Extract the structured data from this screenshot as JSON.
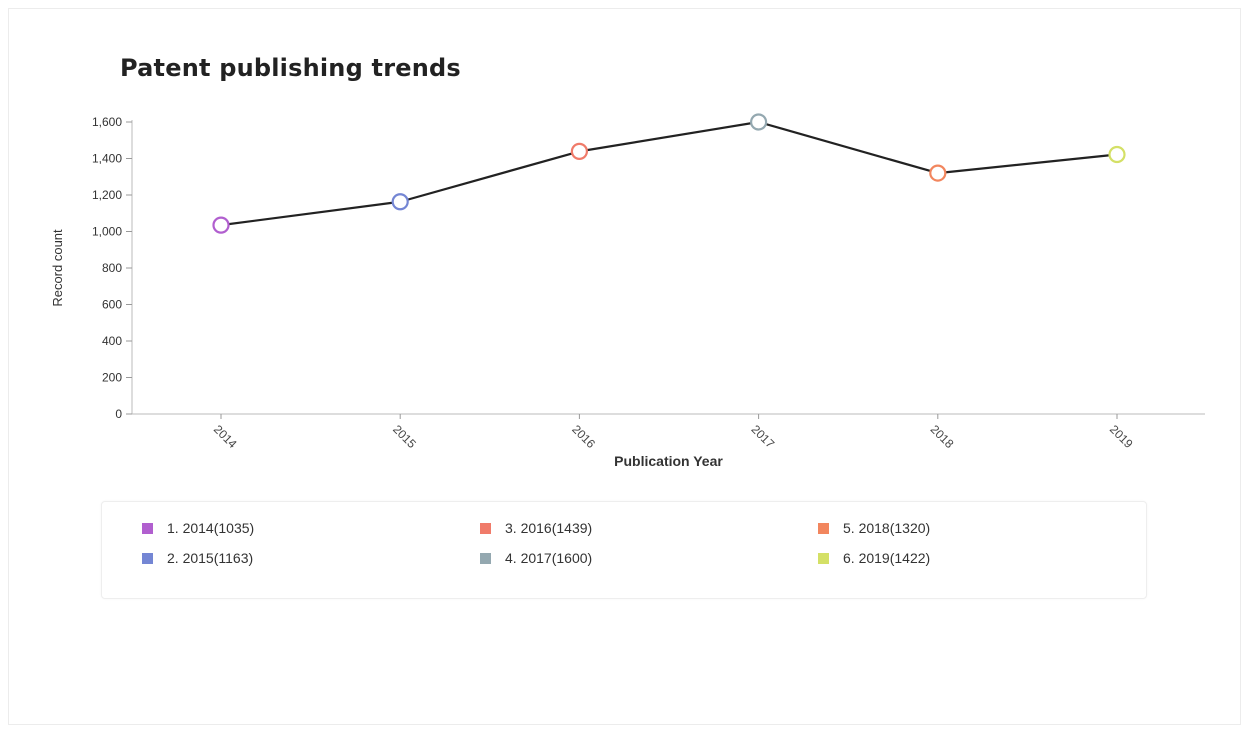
{
  "chart_data": {
    "type": "line",
    "title": "Patent publishing trends",
    "xlabel": "Publication Year",
    "ylabel": "Record count",
    "categories": [
      "2014",
      "2015",
      "2016",
      "2017",
      "2018",
      "2019"
    ],
    "values": [
      1035,
      1163,
      1439,
      1600,
      1320,
      1422
    ],
    "ylim": [
      0,
      1600
    ],
    "yticks": [
      0,
      200,
      400,
      600,
      800,
      1000,
      1200,
      1400,
      1600
    ],
    "ytick_labels": [
      "0",
      "200",
      "400",
      "600",
      "800",
      "1,000",
      "1,200",
      "1,400",
      "1,600"
    ],
    "point_colors": [
      "#b15fcf",
      "#7486d4",
      "#f07b6a",
      "#94a8b0",
      "#f2865e",
      "#d4e066"
    ],
    "line_color": "#222222",
    "grid": false,
    "legend_position": "bottom",
    "legend": [
      {
        "label": "1. 2014(1035)",
        "color": "#b15fcf"
      },
      {
        "label": "2. 2015(1163)",
        "color": "#7486d4"
      },
      {
        "label": "3. 2016(1439)",
        "color": "#f07b6a"
      },
      {
        "label": "4. 2017(1600)",
        "color": "#94a8b0"
      },
      {
        "label": "5. 2018(1320)",
        "color": "#f2865e"
      },
      {
        "label": "6. 2019(1422)",
        "color": "#d4e066"
      }
    ]
  }
}
